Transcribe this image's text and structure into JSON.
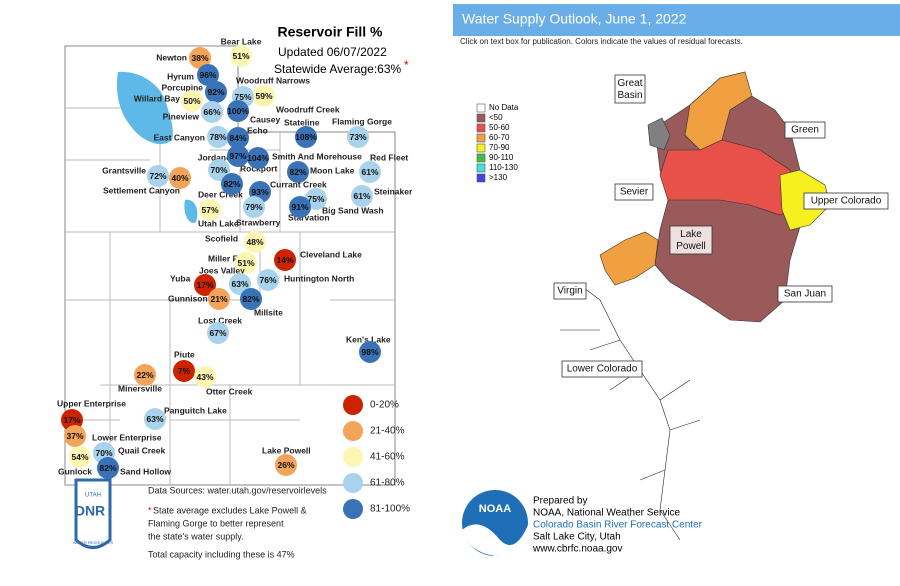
{
  "left": {
    "title": "Reservoir Fill %",
    "updated": "Updated 06/07/2022",
    "average": "Statewide Average:63%",
    "asterisk": "*",
    "reservoirs": [
      {
        "name": "Bear Lake",
        "fill": "51%",
        "color": "#fdf6b2"
      },
      {
        "name": "Newton",
        "fill": "38%",
        "color": "#f2a45a"
      },
      {
        "name": "Hyrum",
        "fill": "96%",
        "color": "#3a72b8"
      },
      {
        "name": "Porcupine",
        "fill": "92%",
        "color": "#3a72b8"
      },
      {
        "name": "Willard Bay",
        "fill": "50%",
        "color": "#fdf6b2"
      },
      {
        "name": "Pineview",
        "fill": "66%",
        "color": "#a9d3ec"
      },
      {
        "name": "Woodruff Narrows",
        "fill": "59%",
        "color": "#fdf6b2"
      },
      {
        "name": "Woodruff Creek",
        "fill": "75%",
        "color": "#a9d3ec"
      },
      {
        "name": "Causey",
        "fill": "100%",
        "color": "#3a72b8"
      },
      {
        "name": "East Canyon",
        "fill": "78%",
        "color": "#a9d3ec"
      },
      {
        "name": "Echo",
        "fill": "84%",
        "color": "#3a72b8"
      },
      {
        "name": "Stateline",
        "fill": "108%",
        "color": "#3a72b8"
      },
      {
        "name": "Flaming Gorge",
        "fill": "73%",
        "color": "#a9d3ec"
      },
      {
        "name": "Jordanelle",
        "fill": "70%",
        "color": "#a9d3ec"
      },
      {
        "name": "Rockport",
        "fill": "97%",
        "color": "#3a72b8"
      },
      {
        "name": "Smith And Morehouse",
        "fill": "104%",
        "color": "#3a72b8"
      },
      {
        "name": "Red Fleet",
        "fill": "61%",
        "color": "#a9d3ec"
      },
      {
        "name": "Moon Lake",
        "fill": "82%",
        "color": "#3a72b8"
      },
      {
        "name": "Grantsville",
        "fill": "72%",
        "color": "#a9d3ec"
      },
      {
        "name": "Settlement Canyon",
        "fill": "40%",
        "color": "#f2a45a"
      },
      {
        "name": "Deer Creek",
        "fill": "82%",
        "color": "#3a72b8"
      },
      {
        "name": "Currant Creek",
        "fill": "93%",
        "color": "#3a72b8"
      },
      {
        "name": "Steinaker",
        "fill": "61%",
        "color": "#a9d3ec"
      },
      {
        "name": "Big Sand Wash",
        "fill": "75%",
        "color": "#a9d3ec"
      },
      {
        "name": "Starvation",
        "fill": "91%",
        "color": "#3a72b8"
      },
      {
        "name": "Utah Lake",
        "fill": "57%",
        "color": "#fdf6b2"
      },
      {
        "name": "Strawberry",
        "fill": "79%",
        "color": "#a9d3ec"
      },
      {
        "name": "Scofield",
        "fill": "48%",
        "color": "#fdf6b2"
      },
      {
        "name": "Cleveland Lake",
        "fill": "14%",
        "color": "#cc2200"
      },
      {
        "name": "Miller Flat",
        "fill": "51%",
        "color": "#fdf6b2"
      },
      {
        "name": "Joes Valley",
        "fill": "63%",
        "color": "#a9d3ec"
      },
      {
        "name": "Huntington North",
        "fill": "76%",
        "color": "#a9d3ec"
      },
      {
        "name": "Yuba",
        "fill": "17%",
        "color": "#cc2200"
      },
      {
        "name": "Gunnison",
        "fill": "21%",
        "color": "#f2a45a"
      },
      {
        "name": "Millsite",
        "fill": "82%",
        "color": "#3a72b8"
      },
      {
        "name": "Lost Creek",
        "fill": "67%",
        "color": "#a9d3ec"
      },
      {
        "name": "Ken's Lake",
        "fill": "98%",
        "color": "#3a72b8"
      },
      {
        "name": "Piute",
        "fill": "7%",
        "color": "#cc2200"
      },
      {
        "name": "Otter Creek",
        "fill": "43%",
        "color": "#fdf6b2"
      },
      {
        "name": "Minersville",
        "fill": "22%",
        "color": "#f2a45a"
      },
      {
        "name": "Panguitch Lake",
        "fill": "63%",
        "color": "#a9d3ec"
      },
      {
        "name": "Upper Enterprise",
        "fill": "17%",
        "color": "#cc2200"
      },
      {
        "name": "Lower Enterprise",
        "fill": "37%",
        "color": "#f2a45a"
      },
      {
        "name": "Quail Creek",
        "fill": "70%",
        "color": "#a9d3ec"
      },
      {
        "name": "Gunlock",
        "fill": "54%",
        "color": "#fdf6b2"
      },
      {
        "name": "Sand Hollow",
        "fill": "82%",
        "color": "#3a72b8"
      },
      {
        "name": "Lake Powell",
        "fill": "26%",
        "color": "#f2a45a"
      }
    ],
    "legend": [
      {
        "label": "0-20%",
        "color": "#cc2200"
      },
      {
        "label": "21-40%",
        "color": "#f2a45a"
      },
      {
        "label": "41-60%",
        "color": "#fdf6b2"
      },
      {
        "label": "61-80%",
        "color": "#a9d3ec"
      },
      {
        "label": "81-100%",
        "color": "#3a72b8"
      }
    ],
    "sources": "Data Sources: water.utah.gov/reservoirlevels",
    "note": [
      "State average excludes Lake Powell &",
      "Flaming Gorge to better represent",
      "the state's water supply."
    ],
    "total": "Total capacity including these is 47%",
    "logo": {
      "top": "UTAH",
      "main": "DNR",
      "bottom": "WATER RESOURCES"
    }
  },
  "right": {
    "title": "Water Supply Outlook, June 1, 2022",
    "subtitle": "Click on text box for publication. Colors indicate the values of residual forecasts.",
    "legend": [
      {
        "label": "No Data",
        "color": "#ffffff"
      },
      {
        "label": "<50",
        "color": "#9b5a5a"
      },
      {
        "label": "50-60",
        "color": "#e8504a"
      },
      {
        "label": "60-70",
        "color": "#f0a040"
      },
      {
        "label": "70-90",
        "color": "#f6f020"
      },
      {
        "label": "90-110",
        "color": "#40c040"
      },
      {
        "label": "110-130",
        "color": "#40e0e0"
      },
      {
        "label": ">130",
        "color": "#4444e0"
      }
    ],
    "basins": [
      "Great Basin",
      "Green",
      "Sevier",
      "Upper Colorado",
      "Lake Powell",
      "Virgin",
      "San Juan",
      "Lower Colorado"
    ],
    "credits": {
      "prepared": "Prepared by",
      "org": "NOAA, National Weather Service",
      "center": "Colorado Basin River Forecast Center",
      "city": "Salt Lake City, Utah",
      "url": "www.cbrfc.noaa.gov",
      "logo": "NOAA"
    }
  }
}
